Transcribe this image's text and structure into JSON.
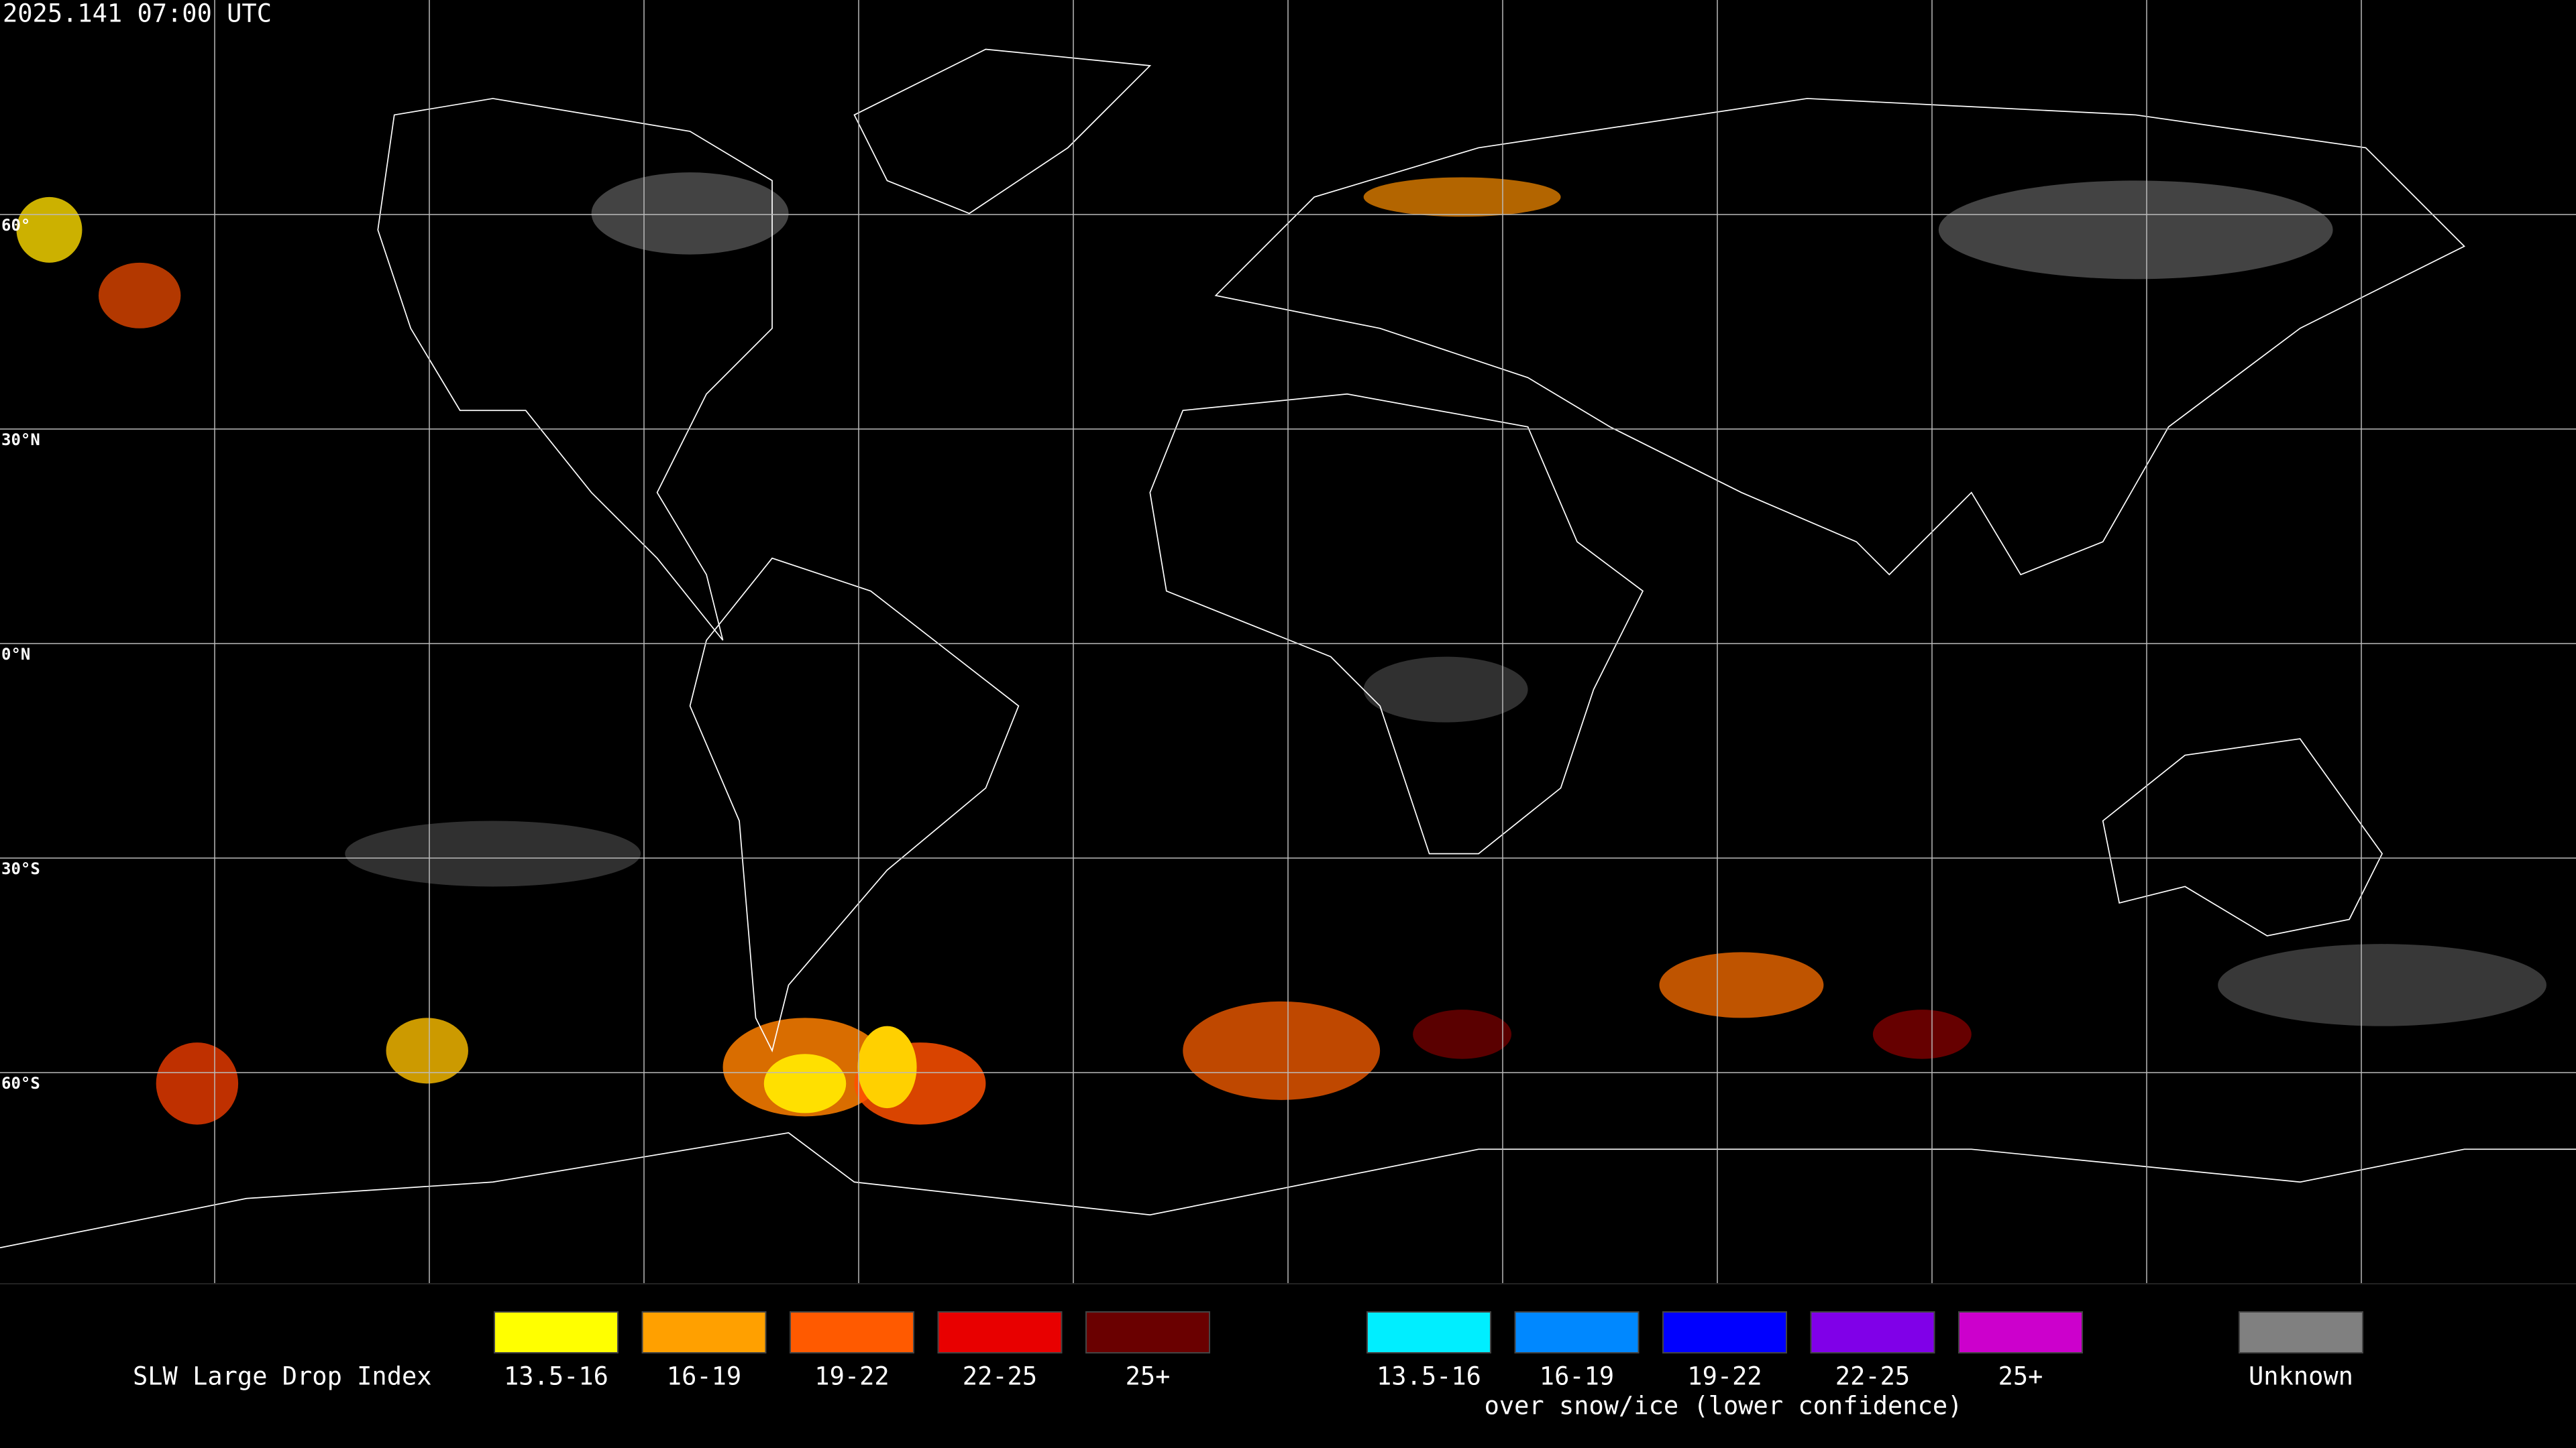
{
  "header": {
    "timestamp": "2025.141 07:00 UTC"
  },
  "map": {
    "lat_labels": [
      "60°",
      "30°N",
      "0°N",
      "30°S",
      "60°S"
    ]
  },
  "legend": {
    "title": "SLW Large Drop Index",
    "items": [
      {
        "label": "13.5-16",
        "color": "#ffff00"
      },
      {
        "label": "16-19",
        "color": "#ffa000"
      },
      {
        "label": "19-22",
        "color": "#ff5a00"
      },
      {
        "label": "22-25",
        "color": "#e80000"
      },
      {
        "label": "25+",
        "color": "#6a0000"
      }
    ],
    "snow_items": [
      {
        "label": "13.5-16",
        "color": "#00eeff"
      },
      {
        "label": "16-19",
        "color": "#0088ff"
      },
      {
        "label": "19-22",
        "color": "#0000ff"
      },
      {
        "label": "22-25",
        "color": "#8000e8"
      },
      {
        "label": "25+",
        "color": "#cc00cc"
      }
    ],
    "snow_caption": "over snow/ice (lower confidence)",
    "unknown": {
      "label": "Unknown",
      "color": "#808080"
    }
  }
}
